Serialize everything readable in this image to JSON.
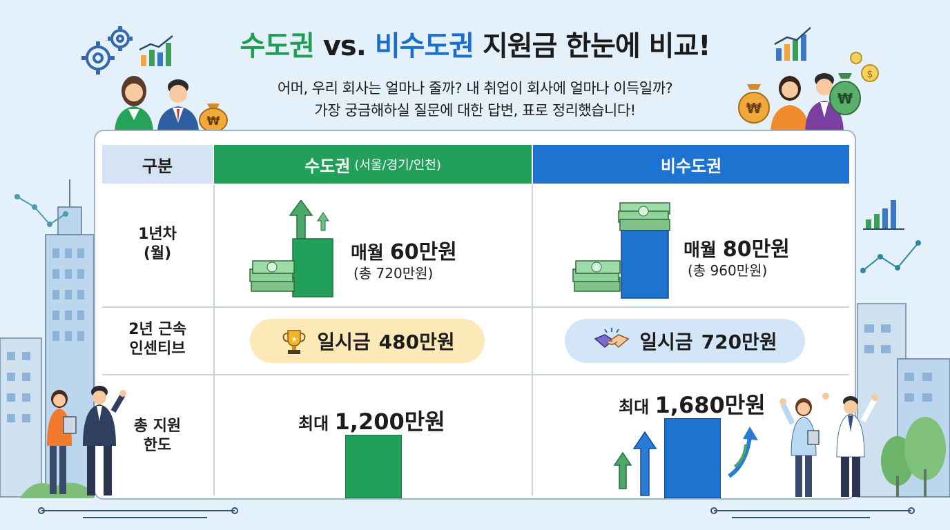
{
  "header": {
    "title_part1": "수도권",
    "title_part2": "vs.",
    "title_part3": "비수도권",
    "title_part4": "지원금 한눈에 비교!",
    "subtitle_line1": "어머, 우리 회사는 얼마나 줄까? 내 취업이 회사에 얼마나 이득일까?",
    "subtitle_line2": "가장 궁금해하실 질문에 대한 답변, 표로 정리했습니다!"
  },
  "table": {
    "headers": {
      "category": "구분",
      "capital": "수도권",
      "capital_sub": "(서울/경기/인천)",
      "noncapital": "비수도권"
    },
    "rows": {
      "first_year": {
        "label_line1": "1년차",
        "label_line2": "(월)",
        "capital_prefix": "매월",
        "capital_amount": "60만원",
        "capital_total": "(총 720만원)",
        "noncapital_prefix": "매월",
        "noncapital_amount": "80만원",
        "noncapital_total": "(총 960만원)"
      },
      "incentive": {
        "label_line1": "2년 근속",
        "label_line2": "인센티브",
        "capital_prefix": "일시금",
        "capital_amount": "480만원",
        "noncapital_prefix": "일시금",
        "noncapital_amount": "720만원"
      },
      "total": {
        "label_line1": "총 지원",
        "label_line2": "한도",
        "capital_prefix": "최대",
        "capital_amount": "1,200만원",
        "noncapital_prefix": "최대",
        "noncapital_amount": "1,680만원"
      }
    }
  },
  "colors": {
    "capital": "#22a059",
    "noncapital": "#1f73d0",
    "gold_pill": "#fde9b8",
    "blue_pill": "#d3e6f8",
    "category_header": "#d5e4f4"
  },
  "icons": [
    "gear-icon",
    "bar-chart-icon",
    "money-bag-icon",
    "money-stack-icon",
    "arrow-up-icon",
    "trophy-icon",
    "handshake-icon",
    "coin-icon"
  ]
}
